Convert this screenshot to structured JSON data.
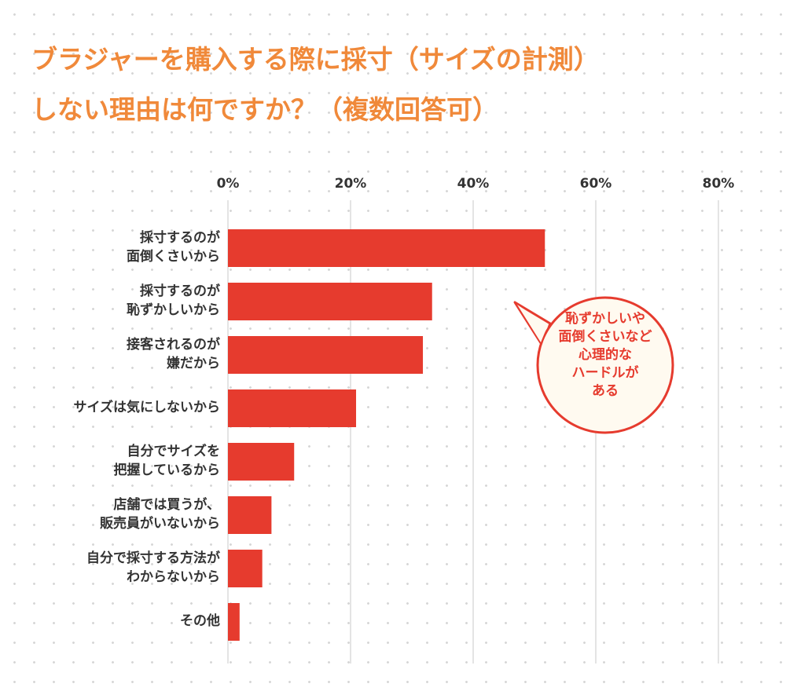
{
  "chart_data": {
    "type": "hbar",
    "title": "ブラジャーを購入する際に採寸（サイズの計測）\nしない理由は何ですか？（複数回答可）",
    "categories": [
      "採寸するのが\n面倒くさいから",
      "採寸するのが\n恥ずかしいから",
      "接客されるのが\n嫌だから",
      "サイズは気にしないから",
      "自分でサイズを\n把握しているから",
      "店舗では買うが、\n販売員がいないから",
      "自分で採寸する方法が\nわからないから",
      "その他"
    ],
    "values": [
      51.7,
      33.3,
      31.8,
      20.9,
      10.8,
      7.1,
      5.6,
      1.9
    ],
    "color": "#e63b2e",
    "xlim": [
      0,
      80
    ],
    "xticks": [
      {
        "value": 0,
        "label": "0%"
      },
      {
        "value": 20,
        "label": "20%"
      },
      {
        "value": 40,
        "label": "40%"
      },
      {
        "value": 60,
        "label": "60%"
      },
      {
        "value": 80,
        "label": "80%"
      }
    ],
    "grid": true,
    "annotation": "恥ずかしいや\n面倒くさいなど\n心理的な\nハードルが\nある"
  }
}
